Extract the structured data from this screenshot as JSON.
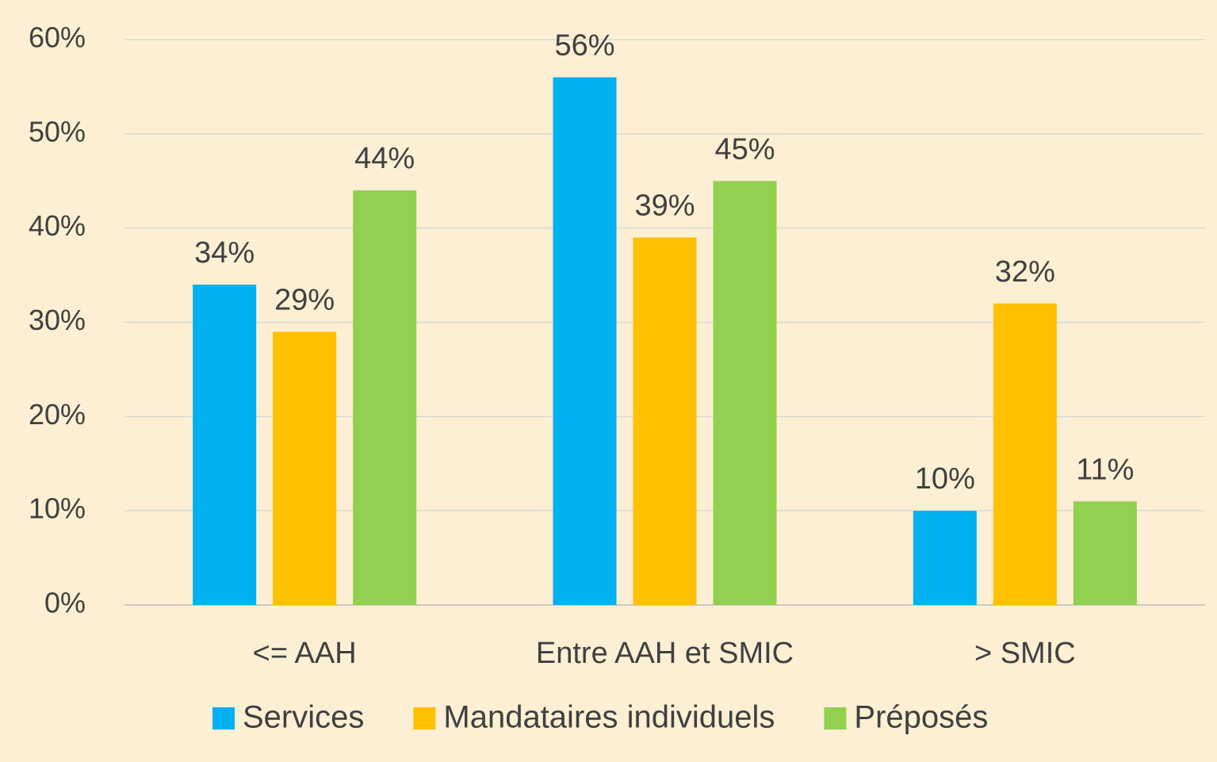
{
  "chart_data": {
    "type": "bar",
    "categories": [
      "<= AAH",
      "Entre AAH et SMIC",
      "> SMIC"
    ],
    "series": [
      {
        "name": "Services",
        "color": "#00B0F0",
        "values": [
          34,
          56,
          10
        ],
        "value_labels": [
          "34%",
          "56%",
          "10%"
        ]
      },
      {
        "name": "Mandataires individuels",
        "color": "#FFC000",
        "values": [
          29,
          39,
          32
        ],
        "value_labels": [
          "29%",
          "39%",
          "32%"
        ]
      },
      {
        "name": "Préposés",
        "color": "#92D050",
        "values": [
          44,
          45,
          11
        ],
        "value_labels": [
          "44%",
          "45%",
          "11%"
        ]
      }
    ],
    "ylim": [
      0,
      60
    ],
    "yticks": [
      {
        "value": 0,
        "label": "0%"
      },
      {
        "value": 10,
        "label": "10%"
      },
      {
        "value": 20,
        "label": "20%"
      },
      {
        "value": 30,
        "label": "30%"
      },
      {
        "value": 40,
        "label": "40%"
      },
      {
        "value": 50,
        "label": "50%"
      },
      {
        "value": 60,
        "label": "60%"
      }
    ],
    "grid": true,
    "legend": "bottom"
  }
}
